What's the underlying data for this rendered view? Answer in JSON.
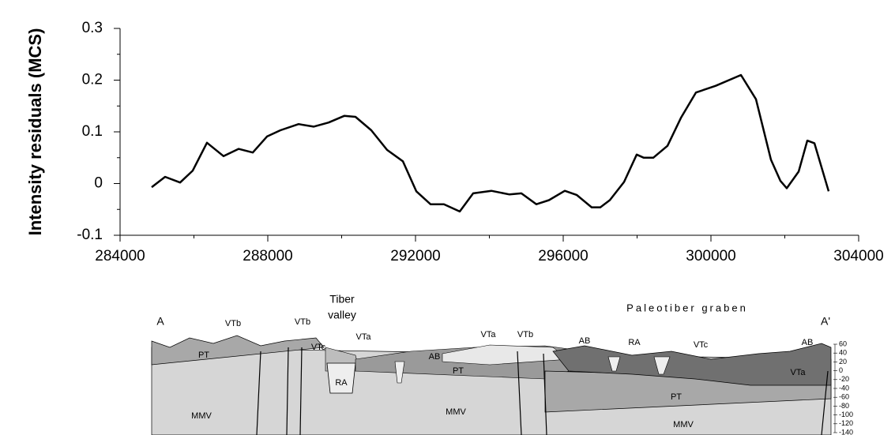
{
  "chart_data": {
    "type": "line",
    "y_label": "Intensity residuals (MCS)",
    "x": [
      284856,
      285219,
      285626,
      285968,
      286353,
      286802,
      287209,
      287594,
      287979,
      288342,
      288834,
      289241,
      289647,
      290075,
      290374,
      290802,
      291230,
      291658,
      292021,
      292406,
      292770,
      293198,
      293561,
      294053,
      294545,
      294866,
      295272,
      295615,
      296043,
      296363,
      296770,
      297005,
      297262,
      297647,
      297989,
      298182,
      298438,
      298823,
      299187,
      299593,
      300128,
      300813,
      301219,
      301626,
      301882,
      302053,
      302374,
      302609,
      302802,
      303187
    ],
    "y": [
      -0.007,
      0.013,
      0.002,
      0.025,
      0.079,
      0.053,
      0.067,
      0.06,
      0.091,
      0.103,
      0.115,
      0.11,
      0.118,
      0.131,
      0.129,
      0.103,
      0.065,
      0.043,
      -0.015,
      -0.04,
      -0.04,
      -0.054,
      -0.019,
      -0.014,
      -0.021,
      -0.019,
      -0.04,
      -0.032,
      -0.014,
      -0.022,
      -0.046,
      -0.046,
      -0.032,
      0.003,
      0.056,
      0.05,
      0.05,
      0.073,
      0.127,
      0.176,
      0.189,
      0.21,
      0.163,
      0.046,
      0.005,
      -0.009,
      0.023,
      0.083,
      0.078,
      -0.015
    ],
    "color": "#000000",
    "xlim": [
      284000,
      304000
    ],
    "xticks": [
      284000,
      288000,
      292000,
      296000,
      300000,
      304000
    ],
    "xminor_ticks": [
      286000,
      290000,
      294000,
      298000,
      302000
    ],
    "ylim": [
      -0.1,
      0.3
    ],
    "yticks": [
      -0.1,
      0,
      0.1,
      0.2,
      0.3
    ],
    "yminor_ticks": [
      -0.05,
      0.05,
      0.15,
      0.25
    ]
  },
  "cross_section": {
    "labels": [
      "A",
      "A'",
      "Tiber",
      "valley",
      "Paleotiber graben",
      "VTb",
      "VTb",
      "VTc",
      "VTa",
      "AB",
      "VTa",
      "VTb",
      "AB",
      "RA",
      "VTc",
      "AB",
      "PT",
      "RA",
      "PT",
      "MMV",
      "MMV",
      "PT",
      "VTa",
      "MMV"
    ],
    "depth_scale": [
      60,
      40,
      20,
      0,
      -20,
      -40,
      -60,
      -80,
      -100,
      -120,
      -140
    ]
  }
}
